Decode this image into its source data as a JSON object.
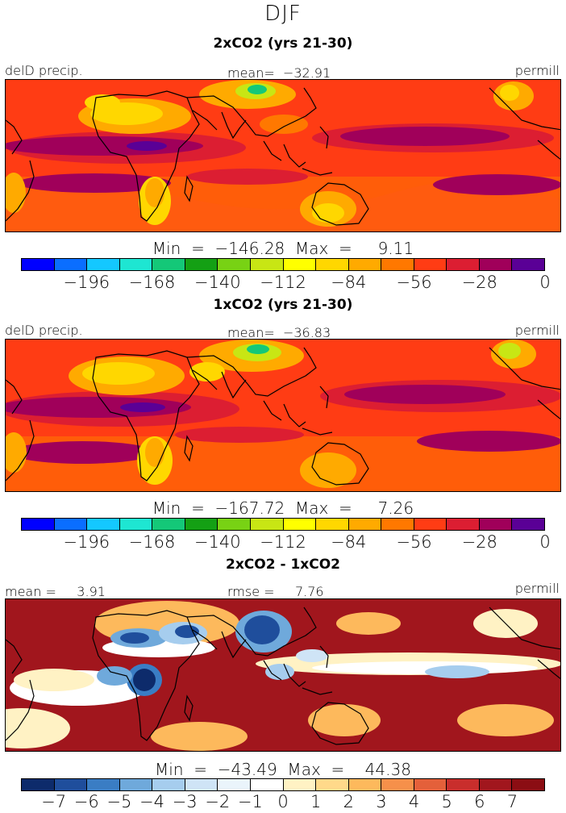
{
  "figure": {
    "title": "DJF"
  },
  "palettes": {
    "precip": [
      "#0000ff",
      "#0a6eff",
      "#14c8ff",
      "#1ee6d2",
      "#14c878",
      "#14a014",
      "#78d214",
      "#c8e614",
      "#ffff00",
      "#ffd700",
      "#ffaa00",
      "#ff7800",
      "#ff3c14",
      "#dc1e32",
      "#a0005a",
      "#5a0096"
    ],
    "diff": [
      "#0d2b6b",
      "#1f4e9c",
      "#3a7dc4",
      "#6fa9db",
      "#a6cdee",
      "#cfe4f6",
      "#eaf4fb",
      "#ffffff",
      "#fff2c4",
      "#ffd98a",
      "#fdb95c",
      "#f6904a",
      "#e4603a",
      "#c92e2c",
      "#a1161d",
      "#8b0d13"
    ]
  },
  "panels": [
    {
      "title": "2xCO2 (yrs 21-30)",
      "left_label": "delD precip.",
      "center_label": "mean=  −32.91",
      "right_label": "permill",
      "minmax": "Min  =  −146.28  Max  =     9.11",
      "ticks": [
        "−196",
        "−168",
        "−140",
        "−112",
        "−84",
        "−56",
        "−28",
        "0"
      ]
    },
    {
      "title": "1xCO2 (yrs 21-30)",
      "left_label": "delD precip.",
      "center_label": "mean=  −36.83",
      "right_label": "permill",
      "minmax": "Min  =  −167.72  Max  =     7.26",
      "ticks": [
        "−196",
        "−168",
        "−140",
        "−112",
        "−84",
        "−56",
        "−28",
        "0"
      ]
    },
    {
      "title": "2xCO2 - 1xCO2",
      "left_label": "mean =     3.91",
      "center_label": "rmse =     7.76",
      "right_label": "permill",
      "minmax": "Min  =  −43.49  Max  =    44.38",
      "ticks": [
        "−7",
        "−6",
        "−5",
        "−4",
        "−3",
        "−2",
        "−1",
        "0",
        "1",
        "2",
        "3",
        "4",
        "5",
        "6",
        "7"
      ]
    }
  ]
}
